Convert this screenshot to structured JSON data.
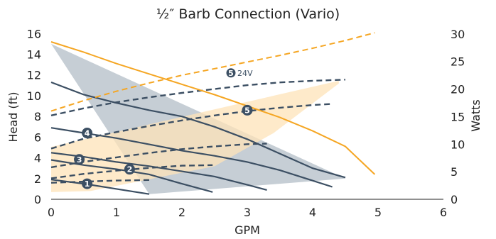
{
  "chart_data": {
    "type": "line",
    "title": "½″ Barb Connection (Vario)",
    "xlabel": "GPM",
    "ylabel": "Head (ft)",
    "y2label": "Watts",
    "xlim": [
      0,
      6
    ],
    "ylim": [
      0,
      16.5
    ],
    "y2lim": [
      0,
      31
    ],
    "xticks": [
      0,
      1,
      2,
      3,
      4,
      5,
      6
    ],
    "yticks": [
      0,
      2,
      4,
      6,
      8,
      10,
      12,
      14,
      16
    ],
    "y2ticks": [
      0,
      5,
      10,
      15,
      20,
      25,
      30
    ],
    "colors": {
      "head_curve": "#3c4f63",
      "power_curve": "#3c4f63",
      "setting_5_24v": "#f5a623",
      "operating_region": "#bcc5ce",
      "overlap_region": "#c9b9a0",
      "power_region": "#fde3b8",
      "marker_fill": "#3c4f63",
      "marker_fill_24v": "#3c4f63"
    },
    "operating_region": [
      [
        0,
        15
      ],
      [
        1.5,
        0.5
      ],
      [
        4.5,
        2
      ],
      [
        0,
        15
      ]
    ],
    "power_region": [
      [
        0,
        1.3
      ],
      [
        0.6,
        1.5
      ],
      [
        2.5,
        6
      ],
      [
        3.4,
        12
      ],
      [
        4.4,
        21
      ],
      [
        4.4,
        21.5
      ],
      [
        0,
        9.5
      ]
    ],
    "series": [
      {
        "label": "1",
        "axis": "left",
        "style": "solid",
        "x": [
          0,
          0.5,
          1.0,
          1.5
        ],
        "y": [
          1.9,
          1.5,
          1.0,
          0.5
        ]
      },
      {
        "label": "1",
        "axis": "right",
        "style": "dashed",
        "x": [
          0,
          0.5,
          1.0,
          1.5
        ],
        "y": [
          3.0,
          3.2,
          3.4,
          3.5
        ]
      },
      {
        "label": "2",
        "axis": "left",
        "style": "solid",
        "x": [
          0,
          0.5,
          1.0,
          1.5,
          2.0,
          2.47
        ],
        "y": [
          3.8,
          3.3,
          2.9,
          2.4,
          1.5,
          0.7
        ]
      },
      {
        "label": "2",
        "axis": "right",
        "style": "dashed",
        "x": [
          0,
          0.5,
          1.0,
          1.5,
          2.0,
          2.47
        ],
        "y": [
          3.8,
          4.6,
          5.2,
          5.7,
          6.1,
          6.2
        ]
      },
      {
        "label": "3",
        "axis": "left",
        "style": "solid",
        "x": [
          0,
          0.5,
          1.0,
          1.5,
          2.0,
          2.5,
          3.0,
          3.3
        ],
        "y": [
          4.5,
          4.1,
          3.6,
          3.2,
          2.7,
          2.2,
          1.4,
          0.9
        ]
      },
      {
        "label": "3",
        "axis": "right",
        "style": "dashed",
        "x": [
          0,
          0.5,
          1.0,
          1.5,
          2.0,
          2.5,
          3.0,
          3.3
        ],
        "y": [
          5.8,
          6.8,
          7.6,
          8.4,
          9.1,
          9.6,
          10.0,
          10.1
        ]
      },
      {
        "label": "4",
        "axis": "left",
        "style": "solid",
        "x": [
          0,
          0.5,
          1.0,
          1.5,
          2.0,
          2.5,
          3.0,
          3.5,
          4.0,
          4.3
        ],
        "y": [
          6.9,
          6.4,
          5.9,
          5.3,
          4.7,
          4.2,
          3.6,
          2.8,
          1.8,
          1.2
        ]
      },
      {
        "label": "4",
        "axis": "right",
        "style": "dashed",
        "x": [
          0,
          0.5,
          1.0,
          1.5,
          2.0,
          2.5,
          3.0,
          3.5,
          4.0,
          4.3
        ],
        "y": [
          9.2,
          11.0,
          12.2,
          13.3,
          14.3,
          15.2,
          16.0,
          16.6,
          17.1,
          17.3
        ]
      },
      {
        "label": "5",
        "axis": "left",
        "style": "solid",
        "x": [
          0,
          0.5,
          1.0,
          1.5,
          2.0,
          2.5,
          3.0,
          3.5,
          4.0,
          4.5
        ],
        "y": [
          11.3,
          10.1,
          9.3,
          8.6,
          8.0,
          7.0,
          5.8,
          4.4,
          3.0,
          2.1
        ]
      },
      {
        "label": "5",
        "axis": "right",
        "style": "dashed",
        "x": [
          0,
          0.5,
          1.0,
          1.5,
          2.0,
          2.5,
          3.0,
          3.5,
          4.0,
          4.5
        ],
        "y": [
          15.2,
          16.5,
          17.6,
          18.5,
          19.3,
          20.0,
          20.7,
          21.2,
          21.5,
          21.7
        ]
      },
      {
        "label": "5",
        "axis": "left",
        "style": "solid-orange",
        "x": [
          0,
          0.5,
          1.0,
          1.5,
          2.0,
          2.5,
          3.0,
          3.5,
          4.0,
          4.5,
          4.95
        ],
        "y": [
          15.2,
          14.2,
          13.1,
          12.1,
          11.1,
          10.1,
          9.0,
          7.9,
          6.6,
          5.1,
          2.4
        ]
      },
      {
        "label": "5 24V",
        "axis": "right",
        "style": "dashed-orange",
        "x": [
          0,
          0.5,
          1.0,
          1.5,
          2.0,
          2.5,
          3.0,
          3.5,
          4.0,
          4.5,
          4.95
        ],
        "y": [
          16.0,
          17.9,
          19.6,
          21.1,
          22.5,
          23.7,
          24.9,
          26.1,
          27.4,
          28.8,
          30.2
        ]
      }
    ],
    "markers": [
      {
        "label": "1",
        "x": 0.55,
        "y": 1.5
      },
      {
        "label": "2",
        "x": 1.2,
        "y": 2.9
      },
      {
        "label": "3",
        "x": 0.43,
        "y": 3.85
      },
      {
        "label": "4",
        "x": 0.55,
        "y": 6.4
      },
      {
        "label": "5",
        "x": 3.0,
        "y": 8.6
      }
    ],
    "annotation": {
      "badge": "5",
      "text": "24V",
      "x": 2.75,
      "y": 12.2
    }
  }
}
